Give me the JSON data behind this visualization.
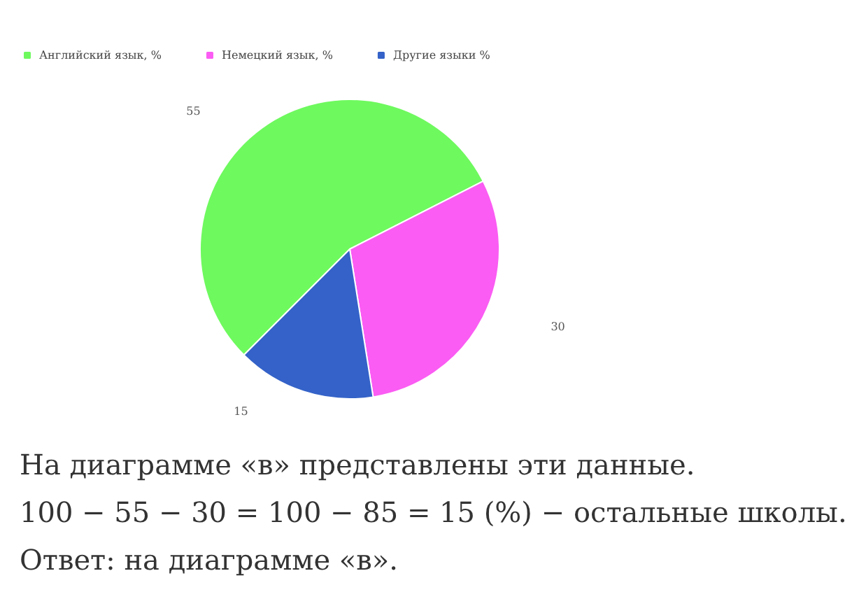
{
  "chart_data": {
    "type": "pie",
    "categories": [
      "Английский язык, %",
      "Немецкий язык, %",
      "Другие языки %"
    ],
    "values": [
      55,
      30,
      15
    ],
    "colors": [
      "#6ef95e",
      "#fb5cf3",
      "#3462c8"
    ],
    "data_labels": true,
    "legend": "top left",
    "annotations": [
      "На диаграмме «в» представлены эти данные.",
      "100 − 55 − 30 = 100 − 85 = 15 (%) − остальные школы.",
      "Ответ: на диаграмме «в»."
    ]
  }
}
